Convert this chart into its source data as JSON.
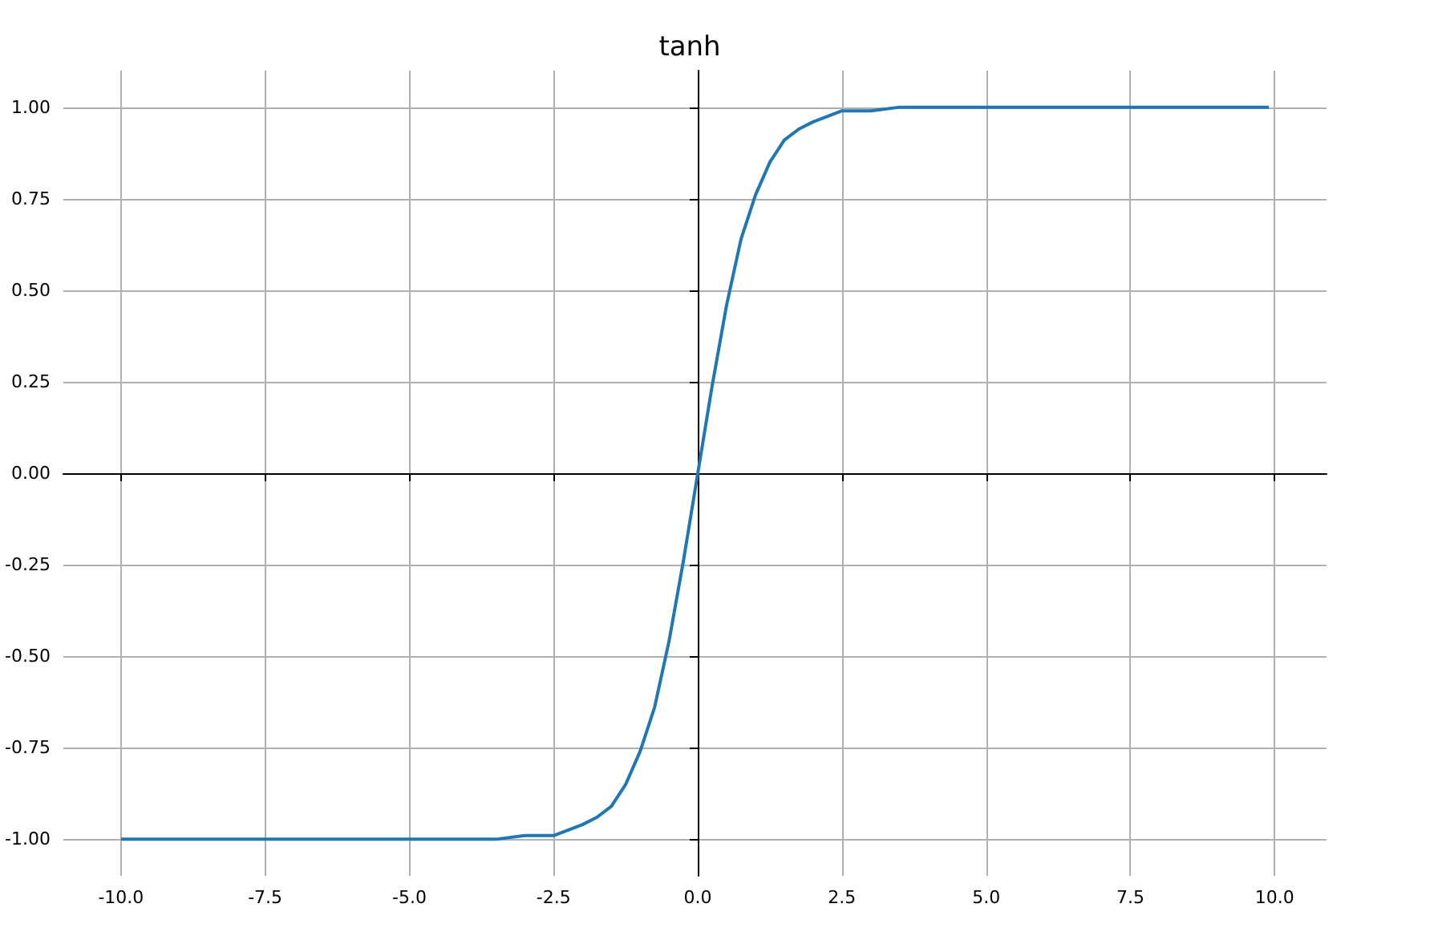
{
  "chart_data": {
    "type": "line",
    "title": "tanh",
    "x": [
      -10,
      -8,
      -6,
      -5,
      -4,
      -3.5,
      -3,
      -2.5,
      -2,
      -1.75,
      -1.5,
      -1.25,
      -1,
      -0.75,
      -0.5,
      -0.25,
      0,
      0.25,
      0.5,
      0.75,
      1,
      1.25,
      1.5,
      1.75,
      2,
      2.5,
      3,
      3.5,
      4,
      5,
      6,
      8,
      9.9
    ],
    "series": [
      {
        "color": "#1f77b4",
        "values": [
          -1,
          -1,
          -1,
          -1,
          -1,
          -1,
          -0.99,
          -0.99,
          -0.96,
          -0.94,
          -0.91,
          -0.85,
          -0.76,
          -0.64,
          -0.46,
          -0.24,
          0,
          0.24,
          0.46,
          0.64,
          0.76,
          0.85,
          0.91,
          0.94,
          0.96,
          0.99,
          0.99,
          1,
          1,
          1,
          1,
          1,
          1
        ]
      }
    ],
    "xlim": [
      -11,
      10.9
    ],
    "ylim": [
      -1.1,
      1.1
    ],
    "xticks": [
      {
        "value": -10,
        "label": "-10.0"
      },
      {
        "value": -7.5,
        "label": "-7.5"
      },
      {
        "value": -5,
        "label": "-5.0"
      },
      {
        "value": -2.5,
        "label": "-2.5"
      },
      {
        "value": 0,
        "label": "0.0"
      },
      {
        "value": 2.5,
        "label": "2.5"
      },
      {
        "value": 5,
        "label": "5.0"
      },
      {
        "value": 7.5,
        "label": "7.5"
      },
      {
        "value": 10,
        "label": "10.0"
      }
    ],
    "yticks": [
      {
        "value": -1,
        "label": "-1.00"
      },
      {
        "value": -0.75,
        "label": "-0.75"
      },
      {
        "value": -0.5,
        "label": "-0.50"
      },
      {
        "value": -0.25,
        "label": "-0.25"
      },
      {
        "value": 0,
        "label": "0.00"
      },
      {
        "value": 0.25,
        "label": "0.25"
      },
      {
        "value": 0.5,
        "label": "0.50"
      },
      {
        "value": 0.75,
        "label": "0.75"
      },
      {
        "value": 1,
        "label": "1.00"
      }
    ],
    "grid": true,
    "marker": "none"
  }
}
